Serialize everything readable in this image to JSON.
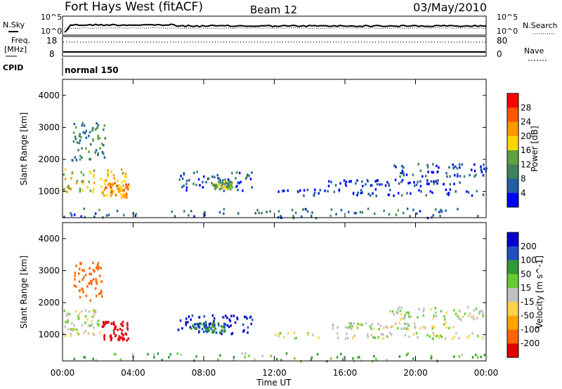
{
  "header": {
    "station": "Fort Hays West (fitACF)",
    "beam": "Beam 12",
    "date": "03/May/2010"
  },
  "noise_panel": {
    "left_label": "N.Sky",
    "right_label": "N.Search",
    "left_ticks": [
      "10^5",
      "10^0"
    ],
    "right_ticks": [
      "10^5",
      "10^0"
    ]
  },
  "freq_panel": {
    "left_label_1": "Freq.",
    "left_label_2": "[MHz]",
    "left_ticks": [
      "18",
      "8"
    ],
    "right_label": "Nave",
    "right_ticks": [
      "80",
      "0"
    ]
  },
  "cpid_panel": {
    "label": "CPID",
    "value": "normal 150"
  },
  "x_axis": {
    "label": "Time UT",
    "ticks": [
      "00:00",
      "04:00",
      "08:00",
      "12:00",
      "16:00",
      "20:00",
      "00:00"
    ]
  },
  "colors": {
    "power": [
      "#0000ff",
      "#2060a0",
      "#408060",
      "#60a040",
      "#ffd700",
      "#ff9900",
      "#ff5500",
      "#ff0000"
    ],
    "velocity": [
      "#e00000",
      "#ff6600",
      "#ffa500",
      "#ffd24d",
      "#c0c0c0",
      "#66cc33",
      "#339933",
      "#2050c0",
      "#0000cc"
    ]
  },
  "chart_data": [
    {
      "type": "heatmap",
      "name": "power",
      "ylabel": "Slant Range [km]",
      "xlabel": "",
      "ylim": [
        180,
        4500
      ],
      "yticks": [
        "4000",
        "3000",
        "2000",
        "1000"
      ],
      "colorbar": {
        "label": "Power [dB]",
        "ticks": [
          "28",
          "24",
          "20",
          "16",
          "12",
          "8",
          "4"
        ],
        "range": [
          0,
          32
        ]
      },
      "regions": [
        {
          "t": [
            0.0,
            3.6
          ],
          "r": [
            1000,
            1750
          ],
          "v": 18
        },
        {
          "t": [
            2.2,
            3.7
          ],
          "r": [
            850,
            1300
          ],
          "v": 22
        },
        {
          "t": [
            0.5,
            2.5
          ],
          "r": [
            2000,
            3300
          ],
          "v": 10
        },
        {
          "t": [
            6.5,
            10.8
          ],
          "r": [
            1050,
            1650
          ],
          "v": 6
        },
        {
          "t": [
            8.5,
            9.6
          ],
          "r": [
            1100,
            1350
          ],
          "v": 14
        },
        {
          "t": [
            12.0,
            23.8
          ],
          "r": [
            900,
            1100
          ],
          "v": 4
        },
        {
          "t": [
            15.0,
            22.5
          ],
          "r": [
            1200,
            1400
          ],
          "v": 4
        },
        {
          "t": [
            18.5,
            24.0
          ],
          "r": [
            1500,
            1900
          ],
          "v": 6
        },
        {
          "t": [
            0.0,
            24.0
          ],
          "r": [
            200,
            500
          ],
          "v": 8
        }
      ]
    },
    {
      "type": "heatmap",
      "name": "velocity",
      "ylabel": "Slant Range [km]",
      "xlabel": "Time UT",
      "ylim": [
        180,
        4500
      ],
      "yticks": [
        "4000",
        "3000",
        "2000",
        "1000"
      ],
      "colorbar": {
        "label": "Velocity [m s^-1]",
        "ticks": [
          "200",
          "100",
          "50",
          "15",
          "-15",
          "-50",
          "-100",
          "-200"
        ],
        "range": [
          -250,
          250
        ]
      },
      "regions": [
        {
          "t": [
            0.0,
            2.3
          ],
          "r": [
            1000,
            1800
          ],
          "v": 0
        },
        {
          "t": [
            2.2,
            3.7
          ],
          "r": [
            850,
            1450
          ],
          "v": -200
        },
        {
          "t": [
            0.5,
            2.2
          ],
          "r": [
            2100,
            3300
          ],
          "v": -120
        },
        {
          "t": [
            6.5,
            10.8
          ],
          "r": [
            1050,
            1650
          ],
          "v": 170
        },
        {
          "t": [
            7.2,
            9.2
          ],
          "r": [
            1100,
            1400
          ],
          "v": 70
        },
        {
          "t": [
            12.0,
            23.8
          ],
          "r": [
            900,
            1100
          ],
          "v": 0
        },
        {
          "t": [
            15.0,
            22.5
          ],
          "r": [
            1200,
            1400
          ],
          "v": 0
        },
        {
          "t": [
            18.5,
            24.0
          ],
          "r": [
            1500,
            1900
          ],
          "v": 0
        },
        {
          "t": [
            0.0,
            24.0
          ],
          "r": [
            200,
            450
          ],
          "v": 35
        }
      ]
    }
  ]
}
